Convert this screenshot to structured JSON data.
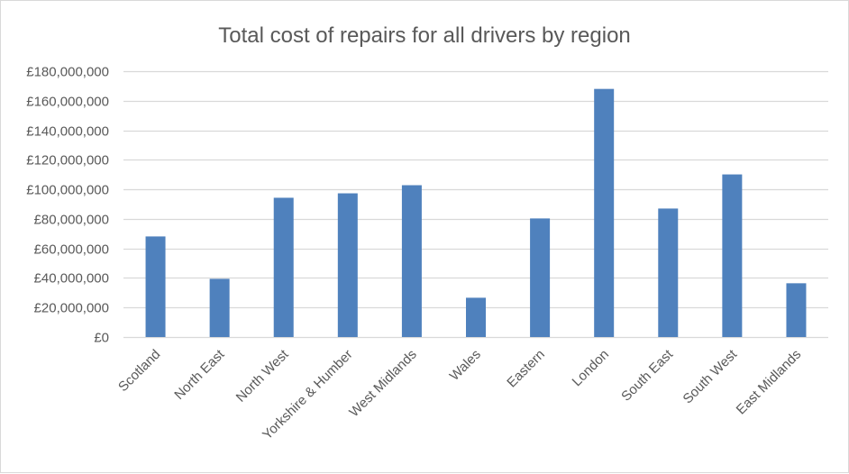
{
  "chart_data": {
    "type": "bar",
    "title": "Total cost of repairs for all drivers by region",
    "xlabel": "",
    "ylabel": "",
    "categories": [
      "Scotland",
      "North East",
      "North West",
      "Yorkshire & Humber",
      "West Midlands",
      "Wales",
      "Eastern",
      "London",
      "South East",
      "South West",
      "East Midlands"
    ],
    "values": [
      68100000,
      39400000,
      94300000,
      97300000,
      102800000,
      26600000,
      80300000,
      168000000,
      87000000,
      110100000,
      36400000
    ],
    "ylim": [
      0,
      180000000
    ],
    "yticks": [
      0,
      20000000,
      40000000,
      60000000,
      80000000,
      100000000,
      120000000,
      140000000,
      160000000,
      180000000
    ],
    "ytick_labels": [
      "£0",
      "£20,000,000",
      "£40,000,000",
      "£60,000,000",
      "£80,000,000",
      "£100,000,000",
      "£120,000,000",
      "£140,000,000",
      "£160,000,000",
      "£180,000,000"
    ],
    "grid": true,
    "legend": "none",
    "colors": {
      "bar": "#4f81bd",
      "grid": "#d9d9d9",
      "text": "#595959"
    }
  }
}
